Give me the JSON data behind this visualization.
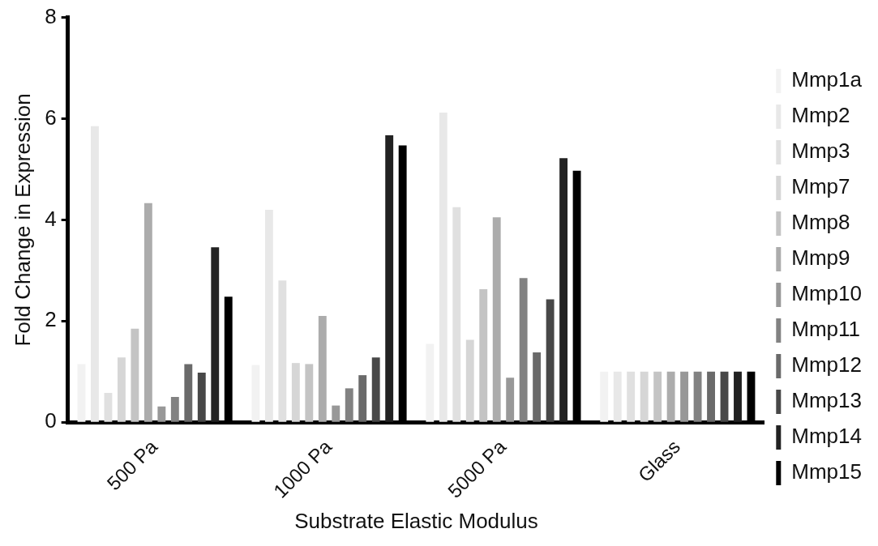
{
  "chart_data": {
    "type": "bar",
    "xlabel": "Substrate Elastic Modulus",
    "ylabel": "Fold Change in Expression",
    "categories": [
      "500 Pa",
      "1000 Pa",
      "5000 Pa",
      "Glass"
    ],
    "ylim": [
      0,
      8
    ],
    "yticks": [
      0,
      2,
      4,
      6,
      8
    ],
    "grid": false,
    "legend": "right",
    "series": [
      {
        "name": "Mmp1a",
        "color": "#f2f2f2",
        "values": [
          1.15,
          1.13,
          1.55,
          1
        ]
      },
      {
        "name": "Mmp2",
        "color": "#e8e8e8",
        "values": [
          5.85,
          4.2,
          6.12,
          1
        ]
      },
      {
        "name": "Mmp3",
        "color": "#e0e0e0",
        "values": [
          0.58,
          2.8,
          4.25,
          1
        ]
      },
      {
        "name": "Mmp7",
        "color": "#d6d6d6",
        "values": [
          1.28,
          1.17,
          1.63,
          1
        ]
      },
      {
        "name": "Mmp8",
        "color": "#c4c4c4",
        "values": [
          1.85,
          1.15,
          2.63,
          1
        ]
      },
      {
        "name": "Mmp9",
        "color": "#acacac",
        "values": [
          4.33,
          2.1,
          4.05,
          1
        ]
      },
      {
        "name": "Mmp10",
        "color": "#989898",
        "values": [
          0.31,
          0.33,
          0.88,
          1
        ]
      },
      {
        "name": "Mmp11",
        "color": "#828282",
        "values": [
          0.5,
          0.67,
          2.85,
          1
        ]
      },
      {
        "name": "Mmp12",
        "color": "#6a6a6a",
        "values": [
          1.15,
          0.93,
          1.38,
          1
        ]
      },
      {
        "name": "Mmp13",
        "color": "#484848",
        "values": [
          0.98,
          1.28,
          2.43,
          1
        ]
      },
      {
        "name": "Mmp14",
        "color": "#222222",
        "values": [
          3.46,
          5.67,
          5.22,
          1
        ]
      },
      {
        "name": "Mmp15",
        "color": "#000000",
        "values": [
          2.48,
          5.47,
          4.97,
          1
        ]
      }
    ]
  }
}
